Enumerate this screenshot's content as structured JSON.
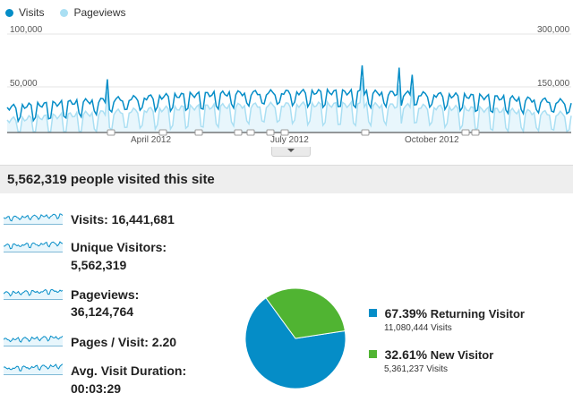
{
  "legend": {
    "visits": "Visits",
    "pageviews": "Pageviews"
  },
  "colors": {
    "visits": "#058dc7",
    "pageviews": "#aadff3",
    "returning": "#058dc7",
    "new": "#50b432"
  },
  "main_chart": {
    "y_left_top": "100,000",
    "y_left_mid": "50,000",
    "y_right_top": "300,000",
    "y_right_mid": "150,000",
    "months": [
      "April 2012",
      "July 2012",
      "October 2012"
    ]
  },
  "summary": {
    "headline": "5,562,319 people visited this site"
  },
  "metrics": {
    "visits": {
      "label": "Visits:",
      "value": "16,441,681"
    },
    "unique": {
      "label": "Unique Visitors:",
      "value": "5,562,319"
    },
    "pageviews": {
      "label": "Pageviews:",
      "value": "36,124,764"
    },
    "pages_visit": {
      "label": "Pages / Visit:",
      "value": "2.20"
    },
    "duration": {
      "label": "Avg. Visit Duration:",
      "value": "00:03:29"
    }
  },
  "visitor_types": {
    "returning": {
      "pct": "67.39%",
      "label": "Returning Visitor",
      "count": "11,080,444 Visits",
      "fraction": 0.6739
    },
    "new": {
      "pct": "32.61%",
      "label": "New Visitor",
      "count": "5,361,237 Visits",
      "fraction": 0.3261
    }
  }
}
